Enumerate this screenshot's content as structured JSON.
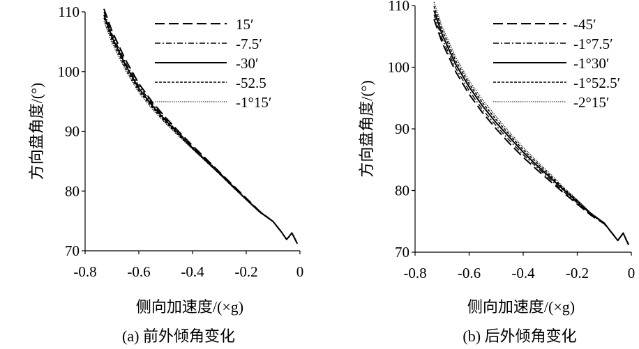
{
  "chart_data": [
    {
      "type": "line",
      "caption": "(a) 前外倾角变化",
      "xlabel": "侧向加速度/(×g)",
      "ylabel": "方向盘角度/(°)",
      "xlim": [
        -0.8,
        0
      ],
      "ylim": [
        70,
        110
      ],
      "xticks": [
        "-0.8",
        "-0.6",
        "-0.4",
        "-0.2",
        "0"
      ],
      "yticks": [
        "70",
        "80",
        "90",
        "100",
        "110"
      ],
      "grid": false,
      "legend_position": "top-right",
      "series": [
        {
          "name": "15′",
          "style": "long-dash",
          "x": [
            -0.73,
            -0.7,
            -0.65,
            -0.6,
            -0.55,
            -0.5,
            -0.45,
            -0.4,
            -0.35,
            -0.3,
            -0.25,
            -0.2,
            -0.15,
            -0.1,
            -0.07,
            -0.05,
            -0.04,
            -0.03,
            -0.02,
            -0.01
          ],
          "y": [
            110.5,
            106.8,
            102.0,
            98.0,
            94.9,
            92.3,
            89.9,
            87.6,
            85.4,
            83.2,
            81.0,
            78.8,
            76.6,
            74.9,
            73.2,
            71.9,
            72.4,
            73.0,
            72.1,
            71.2
          ]
        },
        {
          "name": "-7.5′",
          "style": "dash-dot",
          "x": [
            -0.73,
            -0.7,
            -0.65,
            -0.6,
            -0.55,
            -0.5,
            -0.45,
            -0.4,
            -0.35,
            -0.3,
            -0.25,
            -0.2,
            -0.15,
            -0.1,
            -0.07,
            -0.05,
            -0.04,
            -0.03,
            -0.02,
            -0.01
          ],
          "y": [
            110.0,
            106.3,
            101.5,
            97.6,
            94.6,
            92.0,
            89.7,
            87.4,
            85.3,
            83.1,
            80.9,
            78.7,
            76.6,
            74.9,
            73.2,
            71.9,
            72.4,
            73.0,
            72.1,
            71.2
          ]
        },
        {
          "name": "-30′",
          "style": "solid",
          "x": [
            -0.73,
            -0.7,
            -0.65,
            -0.6,
            -0.55,
            -0.5,
            -0.45,
            -0.4,
            -0.35,
            -0.3,
            -0.25,
            -0.2,
            -0.15,
            -0.1,
            -0.07,
            -0.05,
            -0.04,
            -0.03,
            -0.02,
            -0.01
          ],
          "y": [
            109.5,
            105.8,
            101.1,
            97.2,
            94.3,
            91.8,
            89.5,
            87.2,
            85.1,
            83.0,
            80.8,
            78.6,
            76.5,
            74.9,
            73.2,
            71.9,
            72.4,
            73.0,
            72.1,
            71.2
          ]
        },
        {
          "name": "-52.5",
          "style": "short-dash",
          "x": [
            -0.73,
            -0.7,
            -0.65,
            -0.6,
            -0.55,
            -0.5,
            -0.45,
            -0.4,
            -0.35,
            -0.3,
            -0.25,
            -0.2,
            -0.15,
            -0.1,
            -0.07,
            -0.05,
            -0.04,
            -0.03,
            -0.02,
            -0.01
          ],
          "y": [
            109.0,
            105.3,
            100.6,
            96.8,
            94.0,
            91.5,
            89.3,
            87.1,
            85.0,
            82.9,
            80.7,
            78.6,
            76.5,
            74.9,
            73.2,
            71.9,
            72.4,
            73.0,
            72.1,
            71.2
          ]
        },
        {
          "name": "-1°15′",
          "style": "dotted",
          "x": [
            -0.73,
            -0.7,
            -0.65,
            -0.6,
            -0.55,
            -0.5,
            -0.45,
            -0.4,
            -0.35,
            -0.3,
            -0.25,
            -0.2,
            -0.15,
            -0.1,
            -0.07,
            -0.05,
            -0.04,
            -0.03,
            -0.02,
            -0.01
          ],
          "y": [
            108.4,
            104.8,
            100.2,
            96.5,
            93.7,
            91.3,
            89.1,
            87.0,
            84.9,
            82.8,
            80.6,
            78.5,
            76.4,
            74.9,
            73.2,
            71.9,
            72.4,
            73.0,
            72.1,
            71.2
          ]
        }
      ]
    },
    {
      "type": "line",
      "caption": "(b) 后外倾角变化",
      "xlabel": "侧向加速度/(×g)",
      "ylabel": "方向盘角度/(°)",
      "xlim": [
        -0.8,
        0
      ],
      "ylim": [
        70,
        110
      ],
      "xticks": [
        "-0.8",
        "-0.6",
        "-0.4",
        "-0.2",
        "0"
      ],
      "yticks": [
        "70",
        "80",
        "90",
        "100",
        "110"
      ],
      "grid": false,
      "legend_position": "top-right",
      "series": [
        {
          "name": "-45′",
          "style": "long-dash",
          "x": [
            -0.73,
            -0.7,
            -0.65,
            -0.6,
            -0.55,
            -0.5,
            -0.45,
            -0.4,
            -0.35,
            -0.3,
            -0.25,
            -0.2,
            -0.15,
            -0.1,
            -0.07,
            -0.05,
            -0.04,
            -0.03,
            -0.02,
            -0.01
          ],
          "y": [
            107.8,
            104.0,
            99.3,
            95.6,
            92.6,
            90.0,
            87.6,
            85.4,
            83.4,
            81.5,
            79.6,
            77.8,
            76.0,
            74.6,
            73.0,
            71.9,
            72.5,
            73.1,
            72.1,
            71.2
          ]
        },
        {
          "name": "-1°7.5′",
          "style": "dash-dot",
          "x": [
            -0.73,
            -0.7,
            -0.65,
            -0.6,
            -0.55,
            -0.5,
            -0.45,
            -0.4,
            -0.35,
            -0.3,
            -0.25,
            -0.2,
            -0.15,
            -0.1,
            -0.07,
            -0.05,
            -0.04,
            -0.03,
            -0.02,
            -0.01
          ],
          "y": [
            108.5,
            104.6,
            99.9,
            96.2,
            93.1,
            90.5,
            88.1,
            85.8,
            83.8,
            81.8,
            79.8,
            78.0,
            76.1,
            74.6,
            73.0,
            71.9,
            72.5,
            73.1,
            72.1,
            71.2
          ]
        },
        {
          "name": "-1°30′",
          "style": "solid",
          "x": [
            -0.73,
            -0.7,
            -0.65,
            -0.6,
            -0.55,
            -0.5,
            -0.45,
            -0.4,
            -0.35,
            -0.3,
            -0.25,
            -0.2,
            -0.15,
            -0.1,
            -0.07,
            -0.05,
            -0.04,
            -0.03,
            -0.02,
            -0.01
          ],
          "y": [
            109.2,
            105.3,
            100.5,
            96.8,
            93.7,
            91.0,
            88.6,
            86.2,
            84.1,
            82.1,
            80.1,
            78.2,
            76.2,
            74.7,
            73.0,
            71.9,
            72.5,
            73.1,
            72.1,
            71.2
          ]
        },
        {
          "name": "-1°52.5′",
          "style": "short-dash",
          "x": [
            -0.73,
            -0.7,
            -0.65,
            -0.6,
            -0.55,
            -0.5,
            -0.45,
            -0.4,
            -0.35,
            -0.3,
            -0.25,
            -0.2,
            -0.15,
            -0.1,
            -0.07,
            -0.05,
            -0.04,
            -0.03,
            -0.02,
            -0.01
          ],
          "y": [
            109.9,
            106.0,
            101.1,
            97.3,
            94.2,
            91.5,
            89.0,
            86.6,
            84.5,
            82.4,
            80.3,
            78.4,
            76.3,
            74.7,
            73.0,
            71.9,
            72.5,
            73.1,
            72.1,
            71.2
          ]
        },
        {
          "name": "-2°15′",
          "style": "dotted",
          "x": [
            -0.73,
            -0.7,
            -0.65,
            -0.6,
            -0.55,
            -0.5,
            -0.45,
            -0.4,
            -0.35,
            -0.3,
            -0.25,
            -0.2,
            -0.15,
            -0.1,
            -0.07,
            -0.05,
            -0.04,
            -0.03,
            -0.02,
            -0.01
          ],
          "y": [
            110.6,
            106.6,
            101.7,
            97.8,
            94.7,
            92.0,
            89.4,
            87.0,
            84.8,
            82.7,
            80.5,
            78.5,
            76.4,
            74.8,
            73.0,
            71.9,
            72.5,
            73.1,
            72.1,
            71.2
          ]
        }
      ]
    }
  ]
}
